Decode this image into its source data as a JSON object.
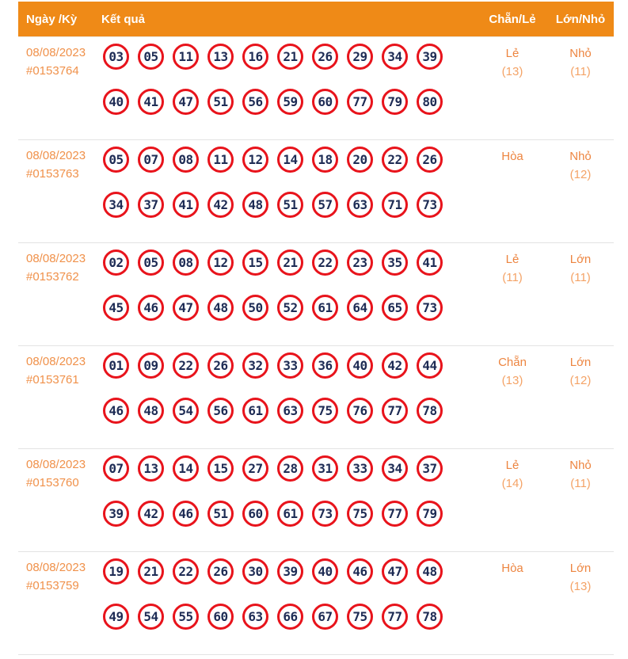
{
  "header": {
    "columns": [
      "Ngày /Kỳ",
      "Kết quả",
      "Chẵn/Lẻ",
      "Lớn/Nhỏ"
    ]
  },
  "colors": {
    "header_bg": "#ef8a17",
    "header_text": "#ffffff",
    "date_text": "#f0914a",
    "stat_label": "#ed8540",
    "stat_count": "#f4a366",
    "ball_border": "#e8131b",
    "ball_number": "#1e2c55",
    "row_separator": "#e3e3e3"
  },
  "rows": [
    {
      "date": "08/08/2023",
      "period": "#0153764",
      "numbers_line1": [
        "03",
        "05",
        "11",
        "13",
        "16",
        "21",
        "26",
        "29",
        "34",
        "39"
      ],
      "numbers_line2": [
        "40",
        "41",
        "47",
        "51",
        "56",
        "59",
        "60",
        "77",
        "79",
        "80"
      ],
      "even_odd": {
        "label": "Lẻ",
        "count": "(13)"
      },
      "big_small": {
        "label": "Nhỏ",
        "count": "(11)"
      }
    },
    {
      "date": "08/08/2023",
      "period": "#0153763",
      "numbers_line1": [
        "05",
        "07",
        "08",
        "11",
        "12",
        "14",
        "18",
        "20",
        "22",
        "26"
      ],
      "numbers_line2": [
        "34",
        "37",
        "41",
        "42",
        "48",
        "51",
        "57",
        "63",
        "71",
        "73"
      ],
      "even_odd": {
        "label": "Hòa",
        "count": ""
      },
      "big_small": {
        "label": "Nhỏ",
        "count": "(12)"
      }
    },
    {
      "date": "08/08/2023",
      "period": "#0153762",
      "numbers_line1": [
        "02",
        "05",
        "08",
        "12",
        "15",
        "21",
        "22",
        "23",
        "35",
        "41"
      ],
      "numbers_line2": [
        "45",
        "46",
        "47",
        "48",
        "50",
        "52",
        "61",
        "64",
        "65",
        "73"
      ],
      "even_odd": {
        "label": "Lẻ",
        "count": "(11)"
      },
      "big_small": {
        "label": "Lớn",
        "count": "(11)"
      }
    },
    {
      "date": "08/08/2023",
      "period": "#0153761",
      "numbers_line1": [
        "01",
        "09",
        "22",
        "26",
        "32",
        "33",
        "36",
        "40",
        "42",
        "44"
      ],
      "numbers_line2": [
        "46",
        "48",
        "54",
        "56",
        "61",
        "63",
        "75",
        "76",
        "77",
        "78"
      ],
      "even_odd": {
        "label": "Chẵn",
        "count": "(13)"
      },
      "big_small": {
        "label": "Lớn",
        "count": "(12)"
      }
    },
    {
      "date": "08/08/2023",
      "period": "#0153760",
      "numbers_line1": [
        "07",
        "13",
        "14",
        "15",
        "27",
        "28",
        "31",
        "33",
        "34",
        "37"
      ],
      "numbers_line2": [
        "39",
        "42",
        "46",
        "51",
        "60",
        "61",
        "73",
        "75",
        "77",
        "79"
      ],
      "even_odd": {
        "label": "Lẻ",
        "count": "(14)"
      },
      "big_small": {
        "label": "Nhỏ",
        "count": "(11)"
      }
    },
    {
      "date": "08/08/2023",
      "period": "#0153759",
      "numbers_line1": [
        "19",
        "21",
        "22",
        "26",
        "30",
        "39",
        "40",
        "46",
        "47",
        "48"
      ],
      "numbers_line2": [
        "49",
        "54",
        "55",
        "60",
        "63",
        "66",
        "67",
        "75",
        "77",
        "78"
      ],
      "even_odd": {
        "label": "Hòa",
        "count": ""
      },
      "big_small": {
        "label": "Lớn",
        "count": "(13)"
      }
    }
  ]
}
